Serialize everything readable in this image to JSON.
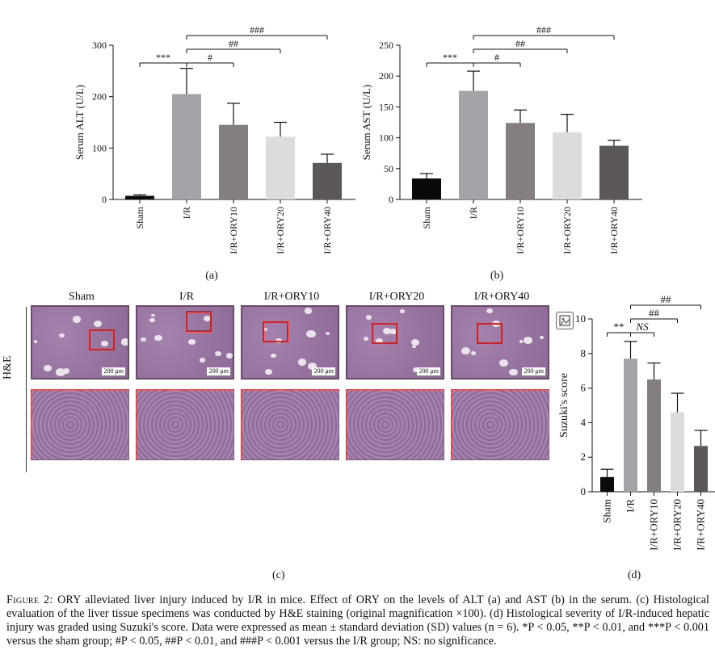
{
  "chart_data": [
    {
      "id": "a",
      "type": "bar",
      "panel_label": "(a)",
      "ylabel": "Serum ALT (U/L)",
      "ylim": [
        0,
        300
      ],
      "yticks": [
        0,
        100,
        200,
        300
      ],
      "categories": [
        "Sham",
        "I/R",
        "I/R+ORY10",
        "I/R+ORY20",
        "I/R+ORY40"
      ],
      "values": [
        7,
        205,
        145,
        122,
        71
      ],
      "errors": [
        2,
        50,
        42,
        28,
        17
      ],
      "colors": [
        "#0a0a0a",
        "#a3a3a8",
        "#847e80",
        "#dcdcdc",
        "#5b5658"
      ],
      "significance": [
        {
          "from": 0,
          "to": 1,
          "label": "***",
          "level": 1
        },
        {
          "from": 1,
          "to": 2,
          "label": "#",
          "level": 1
        },
        {
          "from": 1,
          "to": 3,
          "label": "##",
          "level": 2
        },
        {
          "from": 1,
          "to": 4,
          "label": "###",
          "level": 3
        }
      ]
    },
    {
      "id": "b",
      "type": "bar",
      "panel_label": "(b)",
      "ylabel": "Serum AST (U/L)",
      "ylim": [
        0,
        250
      ],
      "yticks": [
        0,
        50,
        100,
        150,
        200,
        250
      ],
      "categories": [
        "Sham",
        "I/R",
        "I/R+ORY10",
        "I/R+ORY20",
        "I/R+ORY40"
      ],
      "values": [
        34,
        176,
        124,
        109,
        87
      ],
      "errors": [
        8,
        32,
        21,
        29,
        9
      ],
      "colors": [
        "#0a0a0a",
        "#a3a3a8",
        "#847e80",
        "#dcdcdc",
        "#5b5658"
      ],
      "significance": [
        {
          "from": 0,
          "to": 1,
          "label": "***",
          "level": 1
        },
        {
          "from": 1,
          "to": 2,
          "label": "#",
          "level": 1
        },
        {
          "from": 1,
          "to": 3,
          "label": "##",
          "level": 2
        },
        {
          "from": 1,
          "to": 4,
          "label": "###",
          "level": 3
        }
      ]
    },
    {
      "id": "d",
      "type": "bar",
      "panel_label": "(d)",
      "ylabel": "Suzuki's score",
      "ylim": [
        0,
        10
      ],
      "yticks": [
        0,
        2,
        4,
        6,
        8,
        10
      ],
      "categories": [
        "Sham",
        "I/R",
        "I/R+ORY10",
        "I/R+ORY20",
        "I/R+ORY40"
      ],
      "values": [
        0.85,
        7.7,
        6.5,
        4.6,
        2.65
      ],
      "errors": [
        0.45,
        1.0,
        0.95,
        1.1,
        0.9
      ],
      "colors": [
        "#0a0a0a",
        "#a3a3a8",
        "#847e80",
        "#dcdcdc",
        "#5b5658"
      ],
      "significance": [
        {
          "from": 0,
          "to": 1,
          "label": "**",
          "level": 1
        },
        {
          "from": 1,
          "to": 2,
          "label": "NS",
          "level": 1,
          "italic": true
        },
        {
          "from": 1,
          "to": 3,
          "label": "##",
          "level": 2
        },
        {
          "from": 1,
          "to": 4,
          "label": "##",
          "level": 3
        }
      ]
    }
  ],
  "histology": {
    "panel_label": "(c)",
    "row_label": "H&E",
    "columns": [
      "Sham",
      "I/R",
      "I/R+ORY10",
      "I/R+ORY20",
      "I/R+ORY40"
    ],
    "scale_bar": "200 μm",
    "colors": {
      "tissue": "#a581ad",
      "tissue_dark": "#8d6a96",
      "box": "#d62020"
    }
  },
  "caption": {
    "label": "Figure 2:",
    "text": "ORY alleviated liver injury induced by I/R in mice. Effect of ORY on the levels of ALT (a) and AST (b) in the serum. (c) Histological evaluation of the liver tissue specimens was conducted by H&E staining (original magnification ×100). (d) Histological severity of I/R-induced hepatic injury was graded using Suzuki's score. Data were expressed as mean ± standard deviation (SD) values (n = 6). *P < 0.05, **P < 0.01, and ***P < 0.001 versus the sham group; #P < 0.05, ##P < 0.01, and ###P < 0.001 versus the I/R group; NS: no significance."
  }
}
